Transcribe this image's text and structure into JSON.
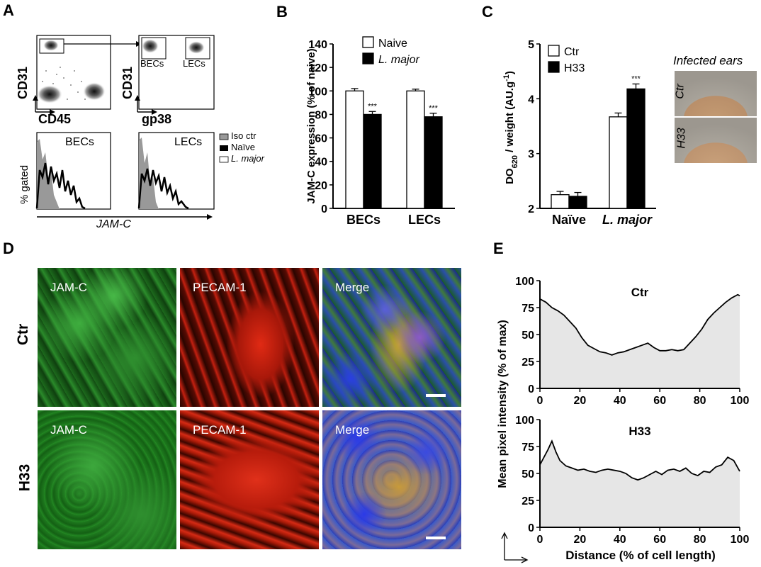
{
  "panel_letters": {
    "a": "A",
    "b": "B",
    "c": "C",
    "d": "D",
    "e": "E"
  },
  "panel_a": {
    "top_left": {
      "ylabel": "CD31",
      "xlabel": "CD45"
    },
    "top_right": {
      "ylabel": "CD31",
      "xlabel": "gp38",
      "gate1": "BECs",
      "gate2": "LECs"
    },
    "hist_left_title": "BECs",
    "hist_right_title": "LECs",
    "hist_ylabel": "% gated",
    "hist_xlabel": "JAM-C",
    "legend": [
      "Iso ctr",
      "Naïve",
      "L. major"
    ]
  },
  "panel_e_icons": {
    "axes": "corner-axes-icon"
  },
  "chart_data": [
    {
      "type": "bar",
      "panel": "B",
      "ylabel": "JAM-C expression (% of naive)",
      "categories": [
        "BECs",
        "LECs"
      ],
      "series": [
        {
          "name": "Naive",
          "values": [
            100,
            100
          ],
          "errors": [
            2,
            1.5
          ],
          "color": "#ffffff"
        },
        {
          "name": "L. major",
          "values": [
            80,
            78
          ],
          "errors": [
            2.5,
            3
          ],
          "color": "#000000"
        }
      ],
      "significance": [
        {
          "category": "BECs",
          "series": "L. major",
          "label": "***"
        },
        {
          "category": "LECs",
          "series": "L. major",
          "label": "***"
        }
      ],
      "ylim": [
        0,
        140
      ],
      "yticks": [
        0,
        20,
        40,
        60,
        80,
        100,
        120,
        140
      ],
      "legend": "top-left"
    },
    {
      "type": "bar",
      "panel": "C",
      "ylabel_main": "DO",
      "ylabel_sub": "620",
      "ylabel_rest": " / weight (AU.g",
      "ylabel_sup": "-1",
      "ylabel_end": ")",
      "categories": [
        "Naïve",
        "L. major"
      ],
      "series": [
        {
          "name": "Ctr",
          "values": [
            2.25,
            3.67
          ],
          "errors": [
            0.06,
            0.07
          ],
          "color": "#ffffff"
        },
        {
          "name": "H33",
          "values": [
            2.22,
            4.18
          ],
          "errors": [
            0.07,
            0.09
          ],
          "color": "#000000"
        }
      ],
      "significance": [
        {
          "category": "L. major",
          "series": "H33",
          "label": "***"
        }
      ],
      "ylim": [
        2,
        5
      ],
      "yticks": [
        2,
        3,
        4,
        5
      ],
      "legend": "top-left",
      "image_title": "Infected ears",
      "image_labels": [
        "Ctr",
        "H33"
      ]
    },
    {
      "type": "area",
      "panel": "E",
      "title": "Ctr",
      "x": [
        0,
        3,
        6,
        9,
        12,
        15,
        18,
        21,
        24,
        27,
        30,
        33,
        36,
        39,
        42,
        45,
        48,
        51,
        54,
        57,
        60,
        63,
        66,
        69,
        72,
        75,
        78,
        81,
        84,
        87,
        90,
        93,
        96,
        99,
        100
      ],
      "y": [
        83,
        80,
        75,
        72,
        68,
        62,
        56,
        47,
        40,
        37,
        34,
        33,
        31,
        33,
        34,
        36,
        38,
        40,
        42,
        38,
        35,
        35,
        36,
        35,
        36,
        42,
        48,
        55,
        64,
        70,
        75,
        80,
        84,
        87,
        86
      ],
      "xlim": [
        0,
        100
      ],
      "ylim": [
        0,
        100
      ],
      "xticks": [
        0,
        20,
        40,
        60,
        80,
        100
      ],
      "yticks": [
        0,
        25,
        50,
        75,
        100
      ]
    },
    {
      "type": "area",
      "panel": "E",
      "title": "H33",
      "x": [
        0,
        2,
        4,
        6,
        8,
        10,
        13,
        16,
        19,
        22,
        25,
        28,
        31,
        34,
        37,
        40,
        43,
        46,
        49,
        52,
        55,
        58,
        61,
        64,
        67,
        70,
        73,
        76,
        79,
        82,
        85,
        88,
        91,
        94,
        97,
        100
      ],
      "y": [
        58,
        65,
        72,
        80,
        70,
        62,
        57,
        55,
        53,
        54,
        52,
        51,
        53,
        54,
        53,
        52,
        50,
        46,
        44,
        46,
        49,
        52,
        49,
        53,
        54,
        52,
        55,
        50,
        48,
        52,
        51,
        56,
        58,
        65,
        62,
        52
      ],
      "xlim": [
        0,
        100
      ],
      "ylim": [
        0,
        100
      ],
      "xticks": [
        0,
        20,
        40,
        60,
        80,
        100
      ],
      "yticks": [
        0,
        25,
        50,
        75,
        100
      ]
    }
  ],
  "panel_e_axes": {
    "ylabel": "Mean pixel intensity (% of max)",
    "xlabel": "Distance (% of cell length)"
  },
  "panel_d": {
    "row_labels": [
      "Ctr",
      "H33"
    ],
    "col_labels": [
      "JAM-C",
      "PECAM-1",
      "Merge"
    ]
  }
}
